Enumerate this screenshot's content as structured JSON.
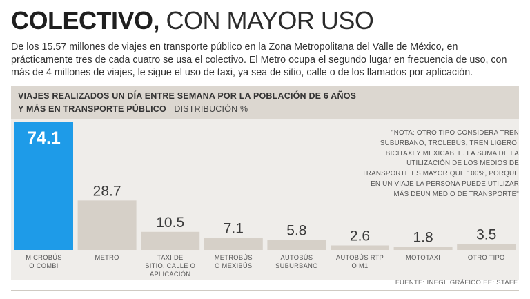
{
  "title": {
    "bold": "COLECTIVO,",
    "light": " CON MAYOR USO"
  },
  "intro": "De los 15.57 millones de viajes en transporte público en la Zona Metropolitana del Valle de México, en prácticamente tres de cada cuatro se usa el colectivo. El Metro ocupa el segundo lugar en frecuencia de uso, con más de 4 millones de viajes, le sigue el uso de taxi, ya sea de sitio, calle o de los llamados por aplicación.",
  "header": {
    "line1": "VIAJES REALIZADOS UN DÍA ENTRE SEMANA POR LA POBLACIÓN DE 6 AÑOS",
    "line2": "Y MÁS EN TRANSPORTE PÚBLICO",
    "separator": "|",
    "unit": "DISTRIBUCIÓN %"
  },
  "note": "\"NOTA: OTRO TIPO CONSIDERA TREN SUBURBANO, TROLEBÚS, TREN LIGERO, BICITAXI Y MEXICABLE. LA SUMA DE LA UTILIZACIÓN DE LOS MEDIOS DE TRANSPORTE ES MAYOR QUE 100%, PORQUE EN UN VIAJE LA PERSONA PUEDE UTILIZAR MÁS DEUN MEDIO DE TRANSPORTE\"",
  "source": "FUENTE: INEGI.  GRÁFICO EE: STAFF.",
  "colors": {
    "highlight": "#1e9be8",
    "bar": "#d6d0c8",
    "highlight_label": "#ffffff",
    "label": "#3a3a3a"
  },
  "chart_data": {
    "type": "bar",
    "title": "VIAJES REALIZADOS UN DÍA ENTRE SEMANA POR LA POBLACIÓN DE 6 AÑOS Y MÁS EN TRANSPORTE PÚBLICO",
    "ylabel": "DISTRIBUCIÓN %",
    "ylim": [
      0,
      74.1
    ],
    "grid": false,
    "categories": [
      [
        "MICROBÚS",
        "O COMBI"
      ],
      [
        "METRO"
      ],
      [
        "TAXI DE",
        "SITIO, CALLE O",
        "APLICACIÓN"
      ],
      [
        "METROBÚS",
        "O MEXIBÚS"
      ],
      [
        "AUTOBÚS",
        "SUBURBANO"
      ],
      [
        "AUTOBÚS RTP",
        "O M1"
      ],
      [
        "MOTOTAXI"
      ],
      [
        "OTRO TIPO"
      ]
    ],
    "values": [
      74.1,
      28.7,
      10.5,
      7.1,
      5.8,
      2.6,
      1.8,
      3.5
    ],
    "value_labels": [
      "74.1",
      "28.7",
      "10.5",
      "7.1",
      "5.8",
      "2.6",
      "1.8",
      "3.5"
    ],
    "highlight_index": 0
  }
}
